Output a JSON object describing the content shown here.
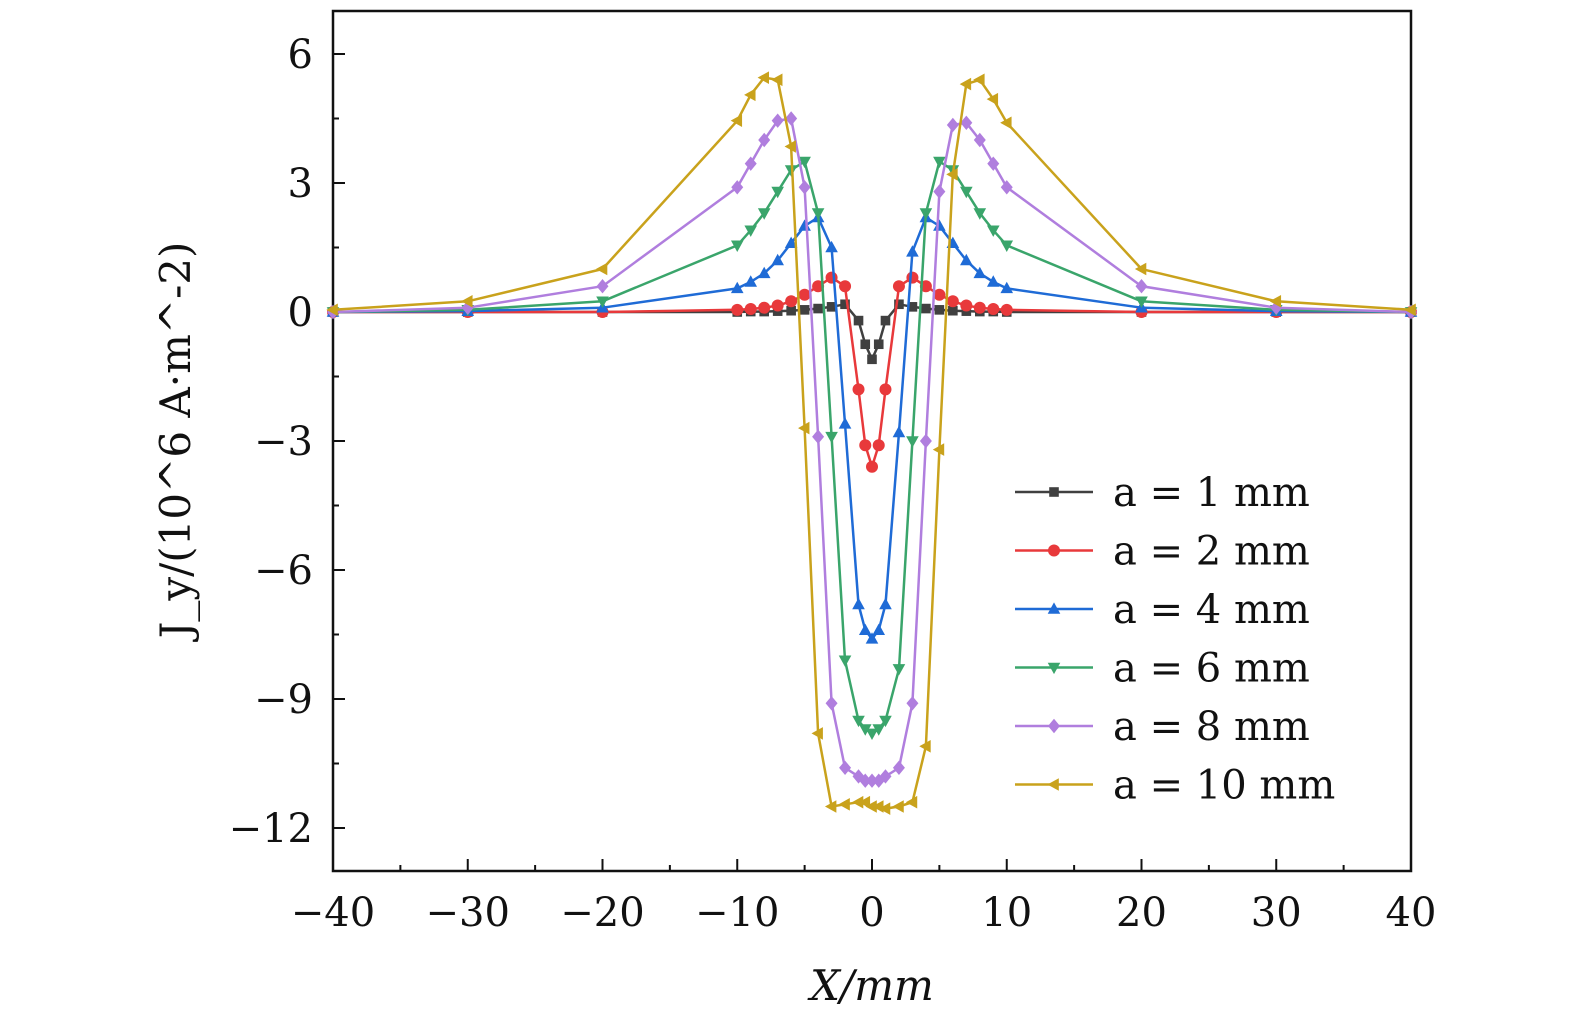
{
  "chart_data": {
    "type": "line",
    "title": "",
    "xlabel": "X/mm",
    "ylabel": "J_y/(10^6 A·m^-2)",
    "xlim": [
      -40,
      40
    ],
    "ylim": [
      -13,
      7
    ],
    "xticks": [
      -40,
      -30,
      -20,
      -10,
      0,
      10,
      20,
      30,
      40
    ],
    "yticks": [
      6,
      3,
      0,
      -3,
      -6,
      -9,
      -12
    ],
    "grid": false,
    "legend_position": "bottom-right",
    "series": [
      {
        "name": "a = 1 mm",
        "color": "#404040",
        "marker": "square",
        "x": [
          -40,
          -30,
          -20,
          -10,
          -9,
          -8,
          -7,
          -6,
          -5,
          -4,
          -3,
          -2,
          -1,
          -0.5,
          0,
          0.5,
          1,
          2,
          3,
          4,
          5,
          6,
          7,
          8,
          9,
          10,
          20,
          30,
          40
        ],
        "y": [
          0,
          0,
          0,
          0,
          0.01,
          0.01,
          0.02,
          0.03,
          0.05,
          0.08,
          0.12,
          0.18,
          -0.2,
          -0.75,
          -1.1,
          -0.75,
          -0.2,
          0.18,
          0.12,
          0.08,
          0.05,
          0.03,
          0.02,
          0.01,
          0.01,
          0,
          0,
          0,
          0
        ]
      },
      {
        "name": "a = 2 mm",
        "color": "#e8393b",
        "marker": "circle",
        "x": [
          -40,
          -30,
          -20,
          -10,
          -9,
          -8,
          -7,
          -6,
          -5,
          -4,
          -3,
          -2,
          -1,
          -0.5,
          0,
          0.5,
          1,
          2,
          3,
          4,
          5,
          6,
          7,
          8,
          9,
          10,
          20,
          30,
          40
        ],
        "y": [
          0,
          0,
          0,
          0.05,
          0.07,
          0.1,
          0.15,
          0.25,
          0.4,
          0.6,
          0.8,
          0.6,
          -1.8,
          -3.1,
          -3.6,
          -3.1,
          -1.8,
          0.6,
          0.8,
          0.6,
          0.4,
          0.25,
          0.15,
          0.1,
          0.07,
          0.05,
          0,
          0,
          0
        ]
      },
      {
        "name": "a = 4 mm",
        "color": "#1f6bd6",
        "marker": "triangle-up",
        "x": [
          -40,
          -30,
          -20,
          -10,
          -9,
          -8,
          -7,
          -6,
          -5,
          -4,
          -3,
          -2,
          -1,
          -0.5,
          0,
          0.5,
          1,
          2,
          3,
          4,
          5,
          6,
          7,
          8,
          9,
          10,
          20,
          30,
          40
        ],
        "y": [
          0,
          0.02,
          0.1,
          0.55,
          0.7,
          0.9,
          1.2,
          1.6,
          2.0,
          2.2,
          1.5,
          -2.6,
          -6.8,
          -7.4,
          -7.6,
          -7.4,
          -6.8,
          -2.8,
          1.4,
          2.2,
          2.0,
          1.6,
          1.2,
          0.9,
          0.7,
          0.55,
          0.1,
          0.02,
          0
        ]
      },
      {
        "name": "a = 6 mm",
        "color": "#3aa56b",
        "marker": "triangle-down",
        "x": [
          -40,
          -30,
          -20,
          -10,
          -9,
          -8,
          -7,
          -6,
          -5,
          -4,
          -3,
          -2,
          -1,
          -0.5,
          0,
          0.5,
          1,
          2,
          3,
          4,
          5,
          6,
          7,
          8,
          9,
          10,
          20,
          30,
          40
        ],
        "y": [
          0,
          0.05,
          0.25,
          1.55,
          1.9,
          2.3,
          2.8,
          3.3,
          3.5,
          2.3,
          -2.9,
          -8.1,
          -9.5,
          -9.7,
          -9.8,
          -9.7,
          -9.5,
          -8.3,
          -3.0,
          2.3,
          3.5,
          3.3,
          2.8,
          2.3,
          1.9,
          1.55,
          0.25,
          0.05,
          0
        ]
      },
      {
        "name": "a = 8 mm",
        "color": "#b07ede",
        "marker": "diamond",
        "x": [
          -40,
          -30,
          -20,
          -10,
          -9,
          -8,
          -7,
          -6,
          -5,
          -4,
          -3,
          -2,
          -1,
          -0.5,
          0,
          0.5,
          1,
          2,
          3,
          4,
          5,
          6,
          7,
          8,
          9,
          10,
          20,
          30,
          40
        ],
        "y": [
          0,
          0.1,
          0.6,
          2.9,
          3.45,
          4.0,
          4.45,
          4.5,
          2.9,
          -2.9,
          -9.1,
          -10.6,
          -10.8,
          -10.9,
          -10.9,
          -10.9,
          -10.8,
          -10.6,
          -9.1,
          -3.0,
          2.8,
          4.35,
          4.4,
          4.0,
          3.45,
          2.9,
          0.6,
          0.1,
          0
        ]
      },
      {
        "name": "a = 10 mm",
        "color": "#c9a21c",
        "marker": "triangle-left",
        "x": [
          -40,
          -30,
          -20,
          -10,
          -9,
          -8,
          -7,
          -6,
          -5,
          -4,
          -3,
          -2,
          -1,
          -0.5,
          0,
          0.5,
          1,
          2,
          3,
          4,
          5,
          6,
          7,
          8,
          9,
          10,
          20,
          30,
          40
        ],
        "y": [
          0.05,
          0.25,
          1.0,
          4.45,
          5.05,
          5.45,
          5.4,
          3.85,
          -2.7,
          -9.8,
          -11.5,
          -11.45,
          -11.4,
          -11.4,
          -11.5,
          -11.5,
          -11.55,
          -11.5,
          -11.4,
          -10.1,
          -3.2,
          3.2,
          5.3,
          5.4,
          4.95,
          4.4,
          1.0,
          0.25,
          0.05
        ]
      }
    ]
  }
}
